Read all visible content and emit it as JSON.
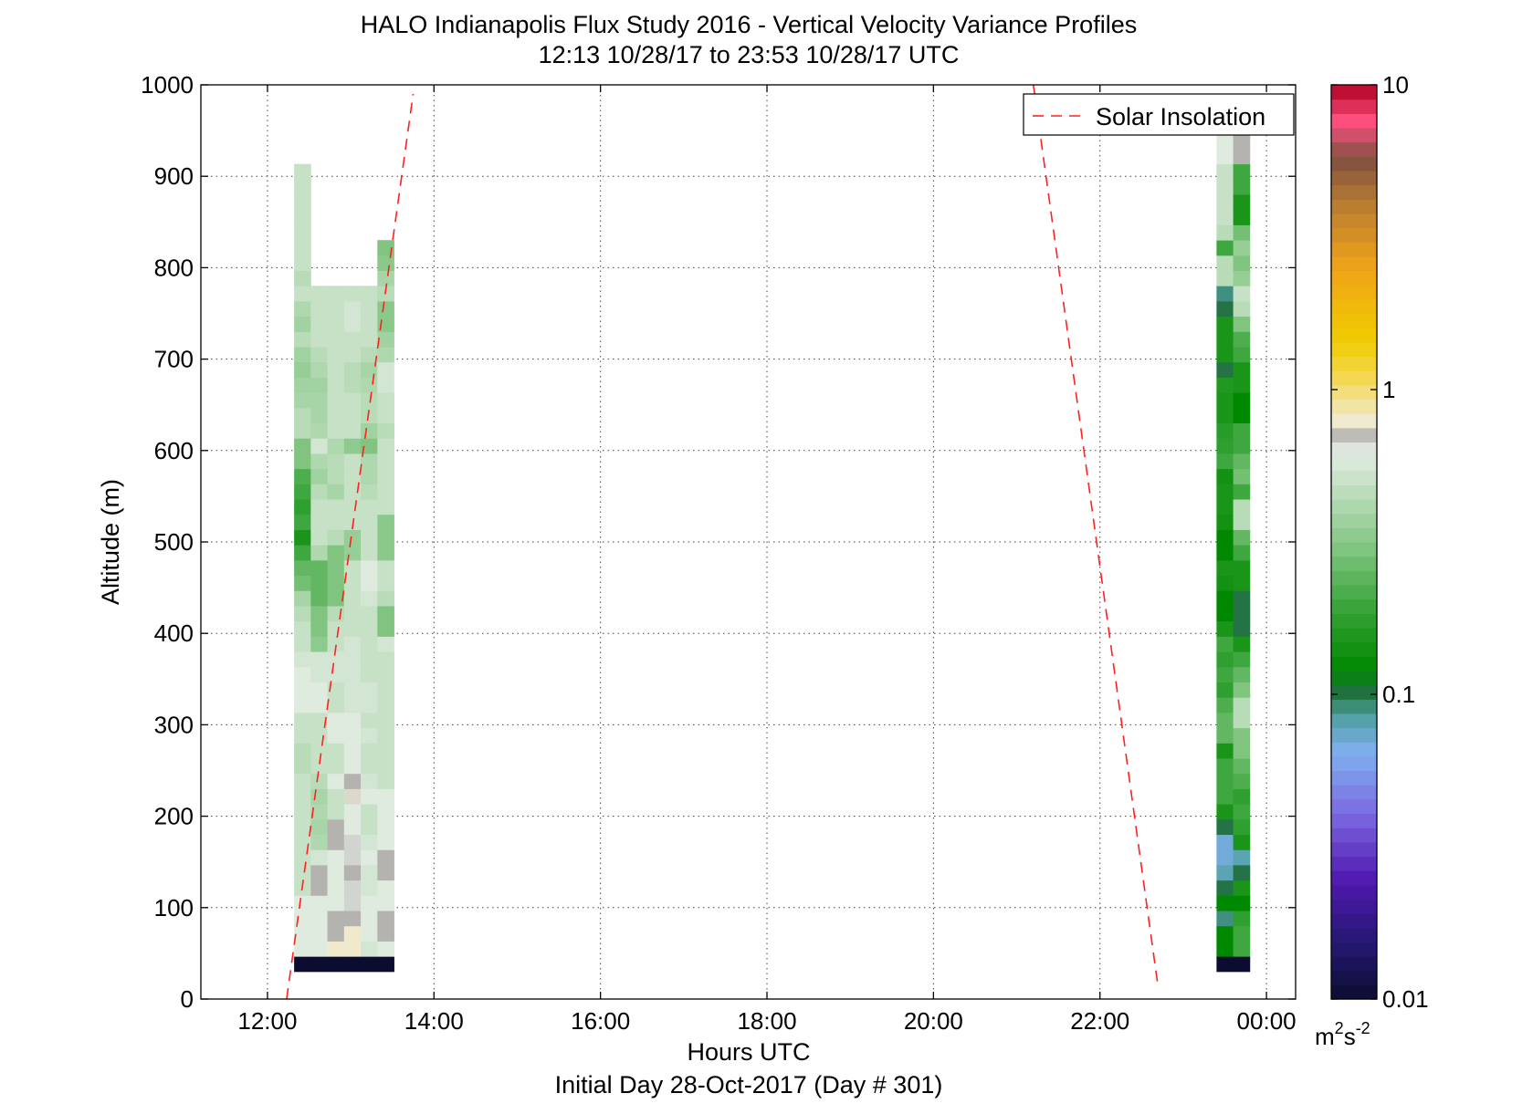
{
  "chart_data": {
    "type": "heatmap",
    "title": "HALO Indianapolis Flux Study 2016 - Vertical Velocity Variance Profiles",
    "subtitle": "12:13 10/28/17 to 23:53 10/28/17  UTC",
    "xlabel": "Hours UTC",
    "xlabel2": "Initial Day 28-Oct-2017 (Day # 301)",
    "ylabel": "Altitude (m)",
    "colorbar_unit": {
      "base": "m",
      "sup1": "2",
      "mid": "s",
      "sup2": "-2"
    },
    "x_range_hours": [
      11.2,
      24.35
    ],
    "ylim": [
      0,
      1000
    ],
    "x_ticks": [
      {
        "value": 12,
        "label": "12:00"
      },
      {
        "value": 14,
        "label": "14:00"
      },
      {
        "value": 16,
        "label": "16:00"
      },
      {
        "value": 18,
        "label": "18:00"
      },
      {
        "value": 20,
        "label": "20:00"
      },
      {
        "value": 22,
        "label": "22:00"
      },
      {
        "value": 24,
        "label": "00:00"
      }
    ],
    "y_ticks": [
      {
        "value": 0,
        "label": "0"
      },
      {
        "value": 100,
        "label": "100"
      },
      {
        "value": 200,
        "label": "200"
      },
      {
        "value": 300,
        "label": "300"
      },
      {
        "value": 400,
        "label": "400"
      },
      {
        "value": 500,
        "label": "500"
      },
      {
        "value": 600,
        "label": "600"
      },
      {
        "value": 700,
        "label": "700"
      },
      {
        "value": 800,
        "label": "800"
      },
      {
        "value": 900,
        "label": "900"
      },
      {
        "value": 1000,
        "label": "1000"
      }
    ],
    "grid": true,
    "colorscale": "log",
    "colorbar_range": [
      0.01,
      10
    ],
    "colorbar_ticks": [
      {
        "value": 0.01,
        "label": "0.01"
      },
      {
        "value": 0.1,
        "label": "0.1"
      },
      {
        "value": 1,
        "label": "1"
      },
      {
        "value": 10,
        "label": "10"
      }
    ],
    "colormap": [
      [
        0.0,
        "#0c0c30"
      ],
      [
        0.06,
        "#241870"
      ],
      [
        0.13,
        "#5018b0"
      ],
      [
        0.2,
        "#7a66e0"
      ],
      [
        0.27,
        "#80b0f0"
      ],
      [
        0.31,
        "#50a0a0"
      ],
      [
        0.335,
        "#207040"
      ],
      [
        0.36,
        "#008800"
      ],
      [
        0.42,
        "#30a030"
      ],
      [
        0.5,
        "#88c888"
      ],
      [
        0.6,
        "#e6eee6"
      ],
      [
        0.612,
        "#a8a8a8"
      ],
      [
        0.63,
        "#f0ecd8"
      ],
      [
        0.68,
        "#f4d850"
      ],
      [
        0.72,
        "#f0cc00"
      ],
      [
        0.8,
        "#f0a418"
      ],
      [
        0.87,
        "#b87c30"
      ],
      [
        0.92,
        "#805040"
      ],
      [
        0.96,
        "#ff5080"
      ],
      [
        1.0,
        "#b00020"
      ]
    ],
    "legend": {
      "entries": [
        "Solar Insolation"
      ],
      "position": "top-right"
    },
    "solar_insolation_line": [
      {
        "x": [
          12.23,
          13.75
        ],
        "y": [
          0,
          990
        ]
      },
      {
        "x": [
          21.2,
          22.7
        ],
        "y": [
          1000,
          12
        ]
      }
    ],
    "bin_height_m": 16.67,
    "series": [
      {
        "time": 12.42,
        "bottom_m": 30,
        "values": [
          0.01,
          0.6,
          0.6,
          0.6,
          0.6,
          0.5,
          0.5,
          0.5,
          0.5,
          0.5,
          0.5,
          0.5,
          0.5,
          0.45,
          0.45,
          0.5,
          0.5,
          0.6,
          0.6,
          0.6,
          0.55,
          0.5,
          0.5,
          0.45,
          0.4,
          0.28,
          0.25,
          0.2,
          0.15,
          0.2,
          0.18,
          0.2,
          0.22,
          0.3,
          0.3,
          0.45,
          0.45,
          0.4,
          0.38,
          0.35,
          0.38,
          0.45,
          0.38,
          0.42,
          0.5,
          0.45,
          0.5,
          0.5,
          0.5,
          0.5,
          0.5,
          0.5,
          0.5
        ]
      },
      {
        "time": 12.62,
        "bottom_m": 30,
        "values": [
          0.01,
          0.6,
          0.6,
          0.6,
          0.6,
          0.7,
          0.7,
          0.55,
          0.42,
          0.4,
          0.42,
          0.4,
          0.45,
          0.5,
          0.5,
          0.5,
          0.5,
          0.6,
          0.6,
          0.55,
          0.55,
          0.33,
          0.3,
          0.3,
          0.25,
          0.25,
          0.25,
          0.42,
          0.5,
          0.5,
          0.5,
          0.45,
          0.38,
          0.42,
          0.55,
          0.42,
          0.4,
          0.4,
          0.38,
          0.42,
          0.45,
          0.5,
          0.5,
          0.5,
          0.5
        ]
      },
      {
        "time": 12.82,
        "bottom_m": 30,
        "values": [
          0.01,
          0.8,
          0.7,
          0.7,
          0.6,
          0.6,
          0.6,
          0.6,
          0.7,
          0.7,
          0.5,
          0.5,
          0.6,
          0.5,
          0.5,
          0.6,
          0.6,
          0.5,
          0.5,
          0.55,
          0.55,
          0.5,
          0.5,
          0.45,
          0.3,
          0.3,
          0.3,
          0.3,
          0.45,
          0.5,
          0.5,
          0.4,
          0.45,
          0.45,
          0.42,
          0.5,
          0.5,
          0.5,
          0.5,
          0.5,
          0.5,
          0.5,
          0.5,
          0.5,
          0.5
        ]
      },
      {
        "time": 13.02,
        "bottom_m": 30,
        "values": [
          0.01,
          0.8,
          0.8,
          0.7,
          0.65,
          0.65,
          0.7,
          0.65,
          0.65,
          0.6,
          0.6,
          0.75,
          0.7,
          0.6,
          0.6,
          0.6,
          0.6,
          0.55,
          0.55,
          0.55,
          0.55,
          0.55,
          0.5,
          0.5,
          0.5,
          0.5,
          0.5,
          0.35,
          0.35,
          0.5,
          0.5,
          0.5,
          0.5,
          0.5,
          0.33,
          0.5,
          0.5,
          0.5,
          0.45,
          0.45,
          0.5,
          0.5,
          0.55,
          0.55,
          0.5
        ]
      },
      {
        "time": 13.22,
        "bottom_m": 30,
        "values": [
          0.01,
          0.55,
          0.6,
          0.6,
          0.6,
          0.55,
          0.55,
          0.6,
          0.55,
          0.5,
          0.5,
          0.6,
          0.55,
          0.5,
          0.5,
          0.55,
          0.5,
          0.55,
          0.55,
          0.5,
          0.5,
          0.5,
          0.5,
          0.5,
          0.55,
          0.6,
          0.6,
          0.5,
          0.5,
          0.5,
          0.5,
          0.45,
          0.42,
          0.42,
          0.3,
          0.38,
          0.45,
          0.45,
          0.42,
          0.4,
          0.45,
          0.5,
          0.5,
          0.5,
          0.5
        ]
      },
      {
        "time": 13.42,
        "bottom_m": 30,
        "values": [
          0.01,
          0.6,
          0.7,
          0.7,
          0.6,
          0.6,
          0.7,
          0.7,
          0.6,
          0.6,
          0.6,
          0.6,
          0.5,
          0.5,
          0.5,
          0.5,
          0.5,
          0.5,
          0.5,
          0.5,
          0.5,
          0.55,
          0.3,
          0.3,
          0.45,
          0.5,
          0.5,
          0.32,
          0.32,
          0.32,
          0.5,
          0.5,
          0.5,
          0.5,
          0.5,
          0.45,
          0.5,
          0.5,
          0.55,
          0.55,
          0.42,
          0.38,
          0.32,
          0.32,
          0.45,
          0.4,
          0.32,
          0.3
        ]
      }
    ],
    "series_evening": [
      {
        "time": 23.5,
        "bottom_m": 30,
        "values": [
          0.01,
          0.12,
          0.12,
          0.09,
          0.12,
          0.1,
          0.08,
          0.07,
          0.07,
          0.1,
          0.15,
          0.2,
          0.2,
          0.2,
          0.15,
          0.25,
          0.25,
          0.22,
          0.18,
          0.2,
          0.18,
          0.2,
          0.15,
          0.12,
          0.12,
          0.14,
          0.15,
          0.12,
          0.12,
          0.14,
          0.15,
          0.15,
          0.14,
          0.2,
          0.18,
          0.17,
          0.15,
          0.15,
          0.16,
          0.1,
          0.15,
          0.15,
          0.15,
          0.1,
          0.09,
          0.45,
          0.45,
          0.2,
          0.45,
          0.5,
          0.5,
          0.5,
          0.5,
          0.6,
          0.6
        ]
      },
      {
        "time": 23.7,
        "bottom_m": 30,
        "values": [
          0.01,
          0.2,
          0.2,
          0.18,
          0.12,
          0.15,
          0.1,
          0.08,
          0.15,
          0.18,
          0.2,
          0.18,
          0.22,
          0.25,
          0.3,
          0.3,
          0.45,
          0.45,
          0.3,
          0.25,
          0.2,
          0.15,
          0.1,
          0.1,
          0.1,
          0.15,
          0.15,
          0.2,
          0.25,
          0.45,
          0.45,
          0.2,
          0.28,
          0.25,
          0.2,
          0.2,
          0.12,
          0.12,
          0.15,
          0.15,
          0.2,
          0.22,
          0.3,
          0.45,
          0.5,
          0.35,
          0.3,
          0.35,
          0.28,
          0.15,
          0.15,
          0.2,
          0.2,
          0.7,
          0.7,
          0.5
        ]
      }
    ]
  }
}
